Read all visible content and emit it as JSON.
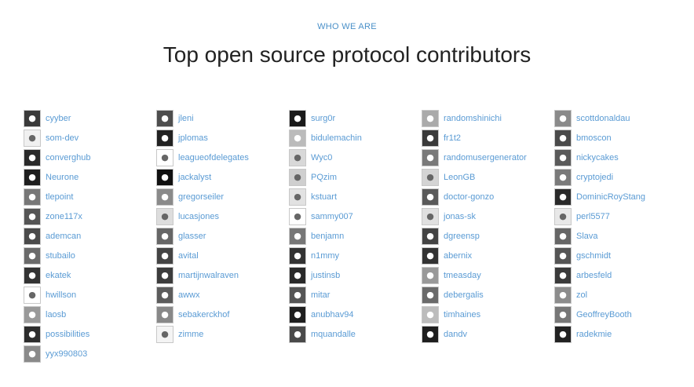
{
  "header": {
    "eyebrow": "WHO WE ARE",
    "title": "Top open source protocol contributors"
  },
  "colors": {
    "eyebrow": "#4a90c8",
    "title": "#222222",
    "link": "#5a9bd4"
  },
  "columns": [
    [
      {
        "name": "cyyber",
        "avatar": "photo-avatar",
        "shade": "#3a3a3a"
      },
      {
        "name": "som-dev",
        "avatar": "identicon-avatar",
        "shade": "#f0f0f0"
      },
      {
        "name": "converghub",
        "avatar": "photo-avatar",
        "shade": "#2a2a2a"
      },
      {
        "name": "Neurone",
        "avatar": "photo-avatar",
        "shade": "#1e1e1e"
      },
      {
        "name": "tlepoint",
        "avatar": "photo-avatar",
        "shade": "#777777"
      },
      {
        "name": "zone117x",
        "avatar": "photo-avatar",
        "shade": "#555555"
      },
      {
        "name": "ademcan",
        "avatar": "photo-avatar",
        "shade": "#4a4a4a"
      },
      {
        "name": "stubailo",
        "avatar": "photo-avatar",
        "shade": "#6a6a6a"
      },
      {
        "name": "ekatek",
        "avatar": "photo-avatar",
        "shade": "#333333"
      },
      {
        "name": "hwillson",
        "avatar": "logo-avatar",
        "shade": "#ffffff"
      },
      {
        "name": "laosb",
        "avatar": "photo-avatar",
        "shade": "#999999"
      },
      {
        "name": "possibilities",
        "avatar": "photo-avatar",
        "shade": "#2c2c2c"
      },
      {
        "name": "yyx990803",
        "avatar": "photo-avatar",
        "shade": "#8a8a8a"
      }
    ],
    [
      {
        "name": "jleni",
        "avatar": "photo-avatar",
        "shade": "#4e4e4e"
      },
      {
        "name": "jplomas",
        "avatar": "photo-avatar",
        "shade": "#222222"
      },
      {
        "name": "leagueofdelegates",
        "avatar": "logo-avatar",
        "shade": "#ffffff"
      },
      {
        "name": "jackalyst",
        "avatar": "photo-avatar",
        "shade": "#111111"
      },
      {
        "name": "gregorseiler",
        "avatar": "identicon-avatar",
        "shade": "#8a8a8a"
      },
      {
        "name": "lucasjones",
        "avatar": "identicon-avatar",
        "shade": "#dddddd"
      },
      {
        "name": "glasser",
        "avatar": "photo-avatar",
        "shade": "#666666"
      },
      {
        "name": "avital",
        "avatar": "photo-avatar",
        "shade": "#444444"
      },
      {
        "name": "martijnwalraven",
        "avatar": "photo-avatar",
        "shade": "#3c3c3c"
      },
      {
        "name": "awwx",
        "avatar": "photo-avatar",
        "shade": "#5c5c5c"
      },
      {
        "name": "sebakerckhof",
        "avatar": "photo-avatar",
        "shade": "#888888"
      },
      {
        "name": "zimme",
        "avatar": "photo-avatar",
        "shade": "#f4f4f4"
      }
    ],
    [
      {
        "name": "surg0r",
        "avatar": "photo-avatar",
        "shade": "#1a1a1a"
      },
      {
        "name": "bidulemachin",
        "avatar": "identicon-avatar",
        "shade": "#bbbbbb"
      },
      {
        "name": "Wyc0",
        "avatar": "identicon-avatar",
        "shade": "#d8d8d8"
      },
      {
        "name": "PQzim",
        "avatar": "identicon-avatar",
        "shade": "#cfcfcf"
      },
      {
        "name": "kstuart",
        "avatar": "identicon-avatar",
        "shade": "#e2e2e2"
      },
      {
        "name": "sammy007",
        "avatar": "smiley-avatar",
        "shade": "#ffffff"
      },
      {
        "name": "benjamn",
        "avatar": "photo-avatar",
        "shade": "#777777"
      },
      {
        "name": "n1mmy",
        "avatar": "photo-avatar",
        "shade": "#333333"
      },
      {
        "name": "justinsb",
        "avatar": "photo-avatar",
        "shade": "#2a2a2a"
      },
      {
        "name": "mitar",
        "avatar": "photo-avatar",
        "shade": "#555555"
      },
      {
        "name": "anubhav94",
        "avatar": "photo-avatar",
        "shade": "#1f1f1f"
      },
      {
        "name": "mquandalle",
        "avatar": "photo-avatar",
        "shade": "#4a4a4a"
      }
    ],
    [
      {
        "name": "randomshinichi",
        "avatar": "photo-avatar",
        "shade": "#aaaaaa"
      },
      {
        "name": "fr1t2",
        "avatar": "photo-avatar",
        "shade": "#3a3a3a"
      },
      {
        "name": "randomusergenerator",
        "avatar": "photo-avatar",
        "shade": "#7a7a7a"
      },
      {
        "name": "LeonGB",
        "avatar": "identicon-avatar",
        "shade": "#d4d4d4"
      },
      {
        "name": "doctor-gonzo",
        "avatar": "photo-avatar",
        "shade": "#5a5a5a"
      },
      {
        "name": "jonas-sk",
        "avatar": "identicon-avatar",
        "shade": "#e0e0e0"
      },
      {
        "name": "dgreensp",
        "avatar": "photo-avatar",
        "shade": "#444444"
      },
      {
        "name": "abernix",
        "avatar": "photo-avatar",
        "shade": "#333333"
      },
      {
        "name": "tmeasday",
        "avatar": "photo-avatar",
        "shade": "#999999"
      },
      {
        "name": "debergalis",
        "avatar": "photo-avatar",
        "shade": "#6a6a6a"
      },
      {
        "name": "timhaines",
        "avatar": "photo-avatar",
        "shade": "#bcbcbc"
      },
      {
        "name": "dandv",
        "avatar": "photo-avatar",
        "shade": "#1e1e1e"
      }
    ],
    [
      {
        "name": "scottdonaldau",
        "avatar": "photo-avatar",
        "shade": "#8a8a8a"
      },
      {
        "name": "bmoscon",
        "avatar": "photo-avatar",
        "shade": "#4a4a4a"
      },
      {
        "name": "nickycakes",
        "avatar": "photo-avatar",
        "shade": "#5a5a5a"
      },
      {
        "name": "cryptojedi",
        "avatar": "identicon-avatar",
        "shade": "#7a7a7a"
      },
      {
        "name": "DominicRoyStang",
        "avatar": "photo-avatar",
        "shade": "#2a2a2a"
      },
      {
        "name": "perl5577",
        "avatar": "identicon-avatar",
        "shade": "#e8e8e8"
      },
      {
        "name": "Slava",
        "avatar": "photo-avatar",
        "shade": "#666666"
      },
      {
        "name": "gschmidt",
        "avatar": "photo-avatar",
        "shade": "#555555"
      },
      {
        "name": "arbesfeld",
        "avatar": "photo-avatar",
        "shade": "#3a3a3a"
      },
      {
        "name": "zol",
        "avatar": "photo-avatar",
        "shade": "#8c8c8c"
      },
      {
        "name": "GeoffreyBooth",
        "avatar": "photo-avatar",
        "shade": "#777777"
      },
      {
        "name": "radekmie",
        "avatar": "photo-avatar",
        "shade": "#222222"
      }
    ]
  ]
}
